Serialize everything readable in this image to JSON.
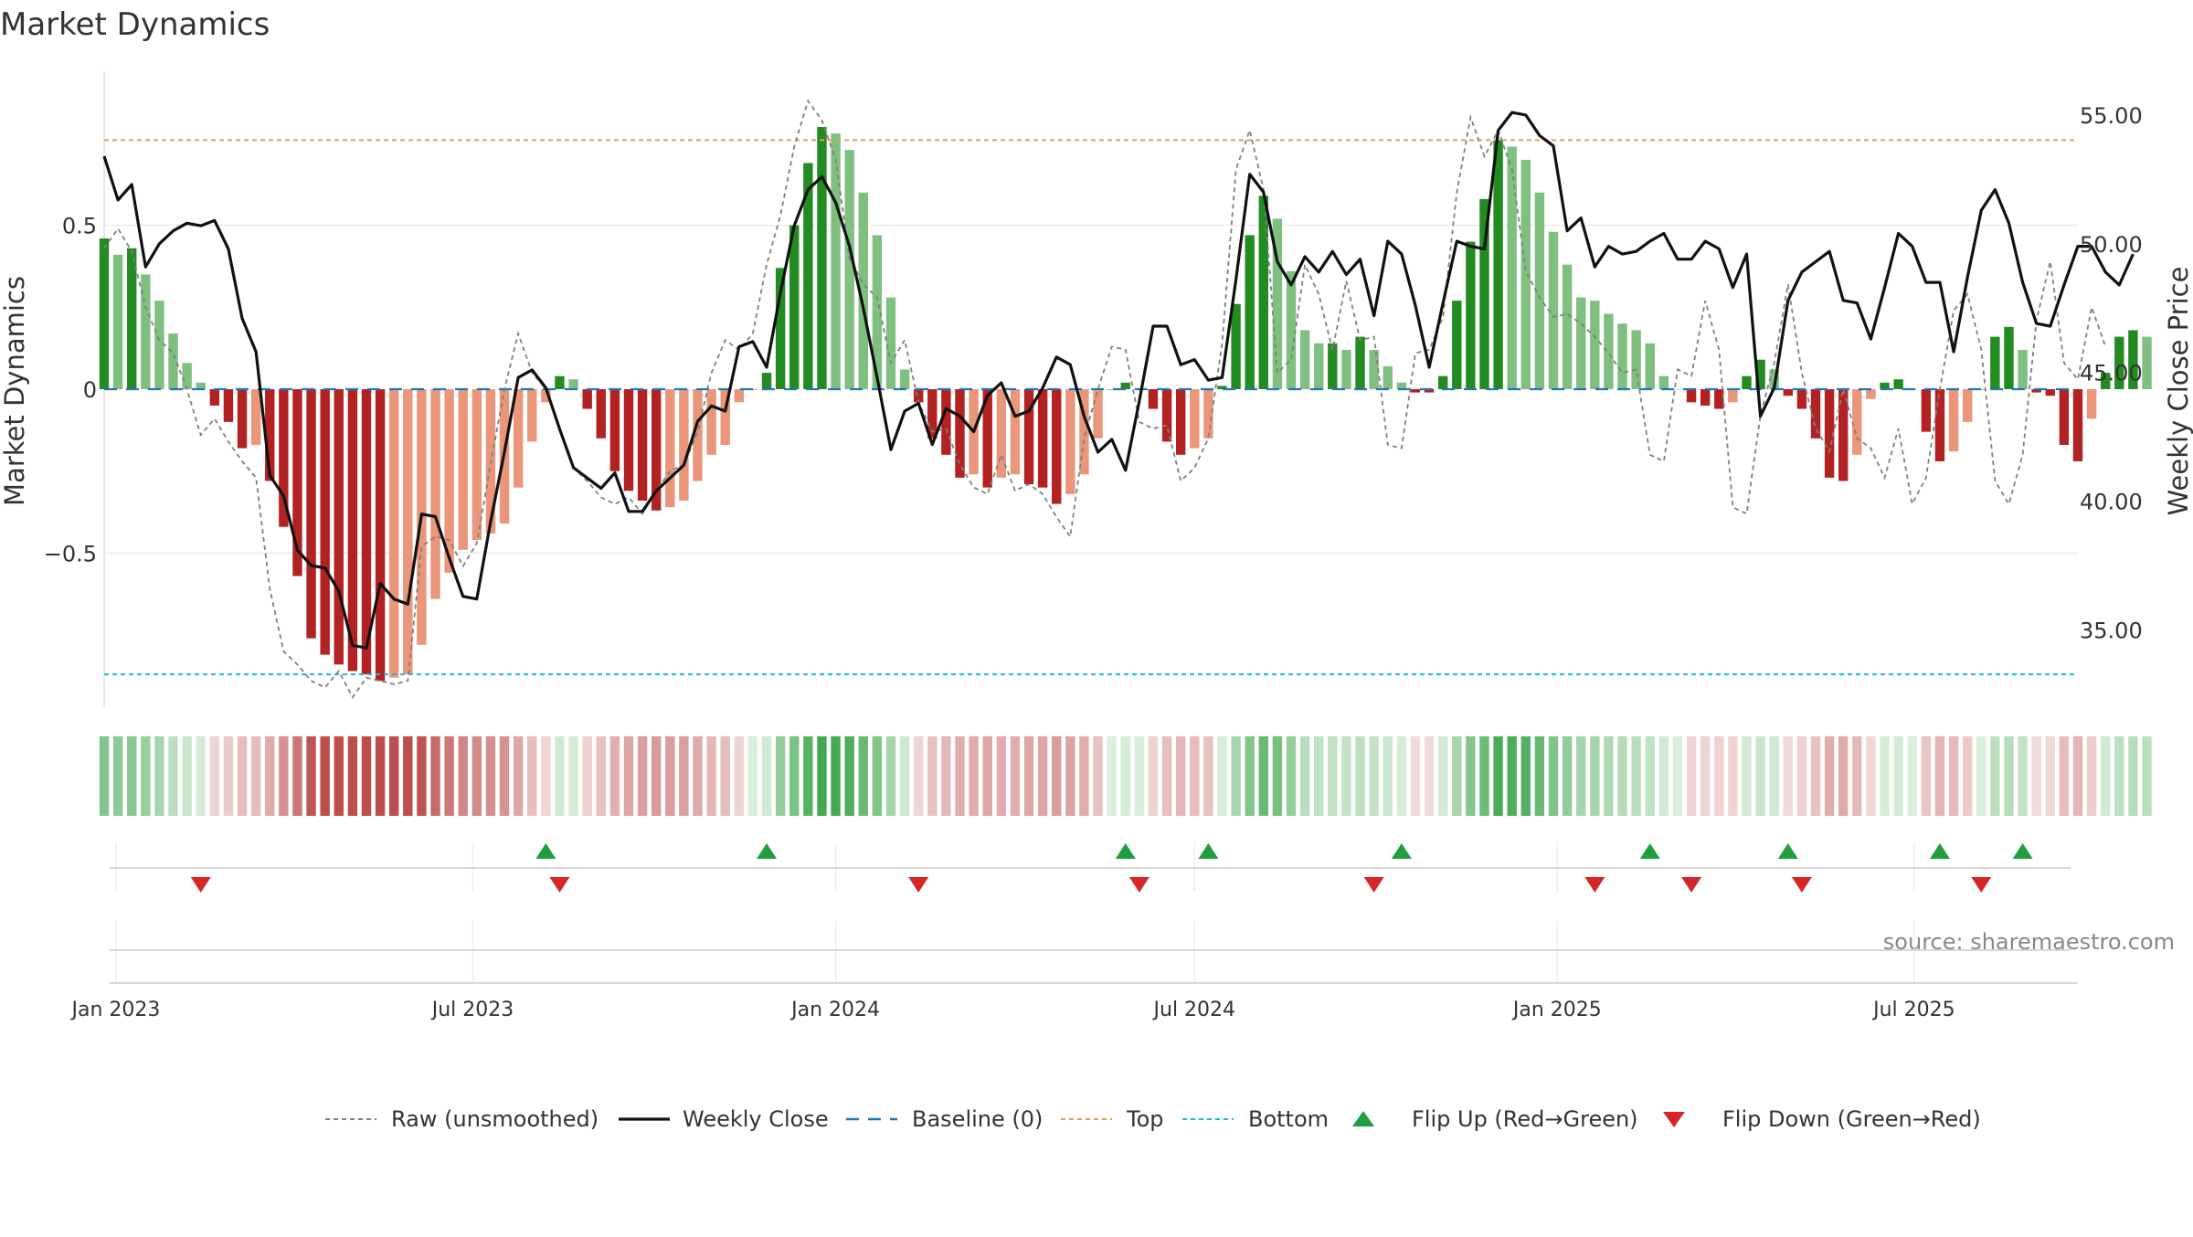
{
  "chart_data": {
    "type": "bar",
    "title": "Market Dynamics",
    "ylabel_left": "Market Dynamics",
    "ylabel_right": "Weekly Close Price",
    "left_axis": {
      "ylim": [
        -0.97,
        0.97
      ],
      "ticks": [
        -0.5,
        0,
        0.5
      ],
      "tick_labels": [
        "−0.5",
        "0",
        "0.5"
      ]
    },
    "right_axis": {
      "ylim": [
        32.0,
        56.7
      ],
      "ticks": [
        35,
        40,
        45,
        50,
        55
      ],
      "tick_labels": [
        "35.00",
        "40.00",
        "45.00",
        "50.00",
        "55.00"
      ]
    },
    "x_axis": {
      "start": "2022-12-26",
      "end": "2025-09-22",
      "tick_dates": [
        "2023-01-01",
        "2023-07-01",
        "2024-01-01",
        "2024-07-01",
        "2025-01-01",
        "2025-07-01"
      ],
      "tick_labels": [
        "Jan 2023",
        "Jul 2023",
        "Jan 2024",
        "Jul 2024",
        "Jan 2025",
        "Jul 2025"
      ]
    },
    "reference_lines": {
      "top": 0.76,
      "bottom": -0.87,
      "baseline": 0
    },
    "colors": {
      "up_strong": "#228B22",
      "up_weak": "#7FBF7F",
      "down_strong": "#B22222",
      "down_weak": "#E9967A",
      "raw": "#808080",
      "close": "#111111",
      "baseline": "#1f77b4",
      "top": "#E0A050",
      "bottom": "#17BECF",
      "flip_up": "#1E9E3E",
      "flip_down": "#D62728"
    },
    "series": [
      {
        "name": "Market Dynamics",
        "values": [
          0.46,
          0.41,
          0.43,
          0.35,
          0.27,
          0.17,
          0.08,
          0.02,
          -0.05,
          -0.1,
          -0.18,
          -0.17,
          -0.28,
          -0.42,
          -0.57,
          -0.76,
          -0.81,
          -0.84,
          -0.86,
          -0.87,
          -0.89,
          -0.88,
          -0.87,
          -0.78,
          -0.64,
          -0.56,
          -0.49,
          -0.46,
          -0.44,
          -0.41,
          -0.3,
          -0.16,
          -0.04,
          0.04,
          0.03,
          -0.06,
          -0.15,
          -0.25,
          -0.31,
          -0.34,
          -0.37,
          -0.36,
          -0.34,
          -0.28,
          -0.2,
          -0.17,
          -0.04,
          0.0,
          0.05,
          0.37,
          0.5,
          0.69,
          0.8,
          0.78,
          0.73,
          0.6,
          0.47,
          0.28,
          0.06,
          -0.04,
          -0.15,
          -0.2,
          -0.27,
          -0.26,
          -0.3,
          -0.27,
          -0.26,
          -0.29,
          -0.3,
          -0.35,
          -0.32,
          -0.26,
          -0.15,
          0.0,
          0.02,
          0.0,
          -0.06,
          -0.16,
          -0.2,
          -0.18,
          -0.15,
          0.01,
          0.26,
          0.47,
          0.59,
          0.52,
          0.36,
          0.18,
          0.14,
          0.14,
          0.12,
          0.16,
          0.12,
          0.07,
          0.02,
          -0.01,
          -0.01,
          0.04,
          0.27,
          0.45,
          0.58,
          0.76,
          0.74,
          0.7,
          0.6,
          0.48,
          0.38,
          0.28,
          0.27,
          0.23,
          0.2,
          0.18,
          0.14,
          0.04,
          0.0,
          -0.04,
          -0.05,
          -0.06,
          -0.04,
          0.04,
          0.09,
          0.06,
          -0.02,
          -0.06,
          -0.15,
          -0.27,
          -0.28,
          -0.2,
          -0.03,
          0.02,
          0.03,
          0.0,
          -0.13,
          -0.22,
          -0.19,
          -0.1,
          0.0,
          0.16,
          0.19,
          0.12,
          -0.01,
          -0.02,
          -0.17,
          -0.22,
          -0.09,
          0.05,
          0.16,
          0.18,
          0.16
        ]
      },
      {
        "name": "Raw (unsmoothed)",
        "values": [
          0.43,
          0.49,
          0.42,
          0.25,
          0.15,
          0.11,
          0.0,
          -0.14,
          -0.09,
          -0.16,
          -0.22,
          -0.27,
          -0.61,
          -0.8,
          -0.84,
          -0.89,
          -0.91,
          -0.86,
          -0.94,
          -0.88,
          -0.89,
          -0.9,
          -0.89,
          -0.48,
          -0.45,
          -0.46,
          -0.54,
          -0.47,
          -0.23,
          0.0,
          0.17,
          0.05,
          0.0,
          -0.12,
          -0.24,
          -0.28,
          -0.33,
          -0.35,
          -0.33,
          -0.38,
          -0.31,
          -0.25,
          -0.23,
          -0.13,
          0.05,
          0.15,
          0.12,
          0.17,
          0.38,
          0.53,
          0.74,
          0.88,
          0.82,
          0.7,
          0.4,
          0.32,
          0.28,
          0.08,
          0.15,
          -0.04,
          -0.13,
          -0.12,
          -0.23,
          -0.3,
          -0.32,
          -0.2,
          -0.31,
          -0.29,
          -0.32,
          -0.39,
          -0.45,
          -0.15,
          0.0,
          0.13,
          0.12,
          -0.1,
          -0.12,
          -0.11,
          -0.28,
          -0.24,
          -0.15,
          0.14,
          0.67,
          0.79,
          0.61,
          0.05,
          0.09,
          0.38,
          0.29,
          0.12,
          0.33,
          0.15,
          0.16,
          -0.17,
          -0.18,
          0.11,
          0.12,
          0.22,
          0.6,
          0.83,
          0.71,
          0.79,
          0.67,
          0.36,
          0.28,
          0.22,
          0.23,
          0.2,
          0.16,
          0.11,
          0.05,
          0.06,
          -0.2,
          -0.22,
          0.06,
          0.04,
          0.27,
          0.12,
          -0.36,
          -0.38,
          -0.08,
          0.08,
          0.32,
          0.05,
          -0.12,
          -0.19,
          0.0,
          -0.15,
          -0.18,
          -0.27,
          -0.12,
          -0.35,
          -0.27,
          0.0,
          0.24,
          0.29,
          0.12,
          -0.28,
          -0.35,
          -0.2,
          0.21,
          0.39,
          0.08,
          0.03,
          0.25,
          0.13
        ]
      },
      {
        "name": "Weekly Close",
        "values": [
          53.4,
          51.7,
          52.3,
          49.1,
          50.0,
          50.5,
          50.8,
          50.7,
          50.9,
          49.8,
          47.1,
          45.8,
          41.0,
          40.2,
          38.1,
          37.5,
          37.4,
          36.5,
          34.4,
          34.3,
          36.8,
          36.2,
          36.0,
          39.5,
          39.4,
          37.8,
          36.3,
          36.2,
          39.2,
          41.9,
          44.8,
          45.1,
          44.4,
          42.8,
          41.3,
          40.9,
          40.5,
          41.1,
          39.6,
          39.6,
          40.4,
          40.9,
          41.4,
          43.1,
          43.7,
          43.5,
          46.0,
          46.2,
          45.2,
          48.1,
          50.7,
          52.1,
          52.6,
          51.6,
          49.9,
          47.5,
          44.8,
          42.0,
          43.5,
          43.8,
          42.2,
          43.6,
          43.3,
          42.7,
          44.1,
          44.6,
          43.3,
          43.5,
          44.4,
          45.6,
          45.3,
          43.3,
          41.9,
          42.4,
          41.2,
          43.9,
          46.8,
          46.8,
          45.3,
          45.5,
          44.7,
          44.8,
          48.6,
          52.7,
          52.0,
          49.3,
          48.4,
          49.5,
          48.9,
          49.7,
          48.8,
          49.4,
          47.2,
          50.1,
          49.6,
          47.6,
          45.2,
          47.7,
          50.1,
          49.9,
          49.8,
          54.4,
          55.1,
          55.0,
          54.2,
          53.8,
          50.5,
          51.0,
          49.1,
          49.9,
          49.6,
          49.7,
          50.1,
          50.4,
          49.4,
          49.4,
          50.1,
          49.8,
          48.3,
          49.6,
          43.3,
          44.4,
          47.8,
          48.9,
          49.3,
          49.7,
          47.8,
          47.7,
          46.3,
          48.3,
          50.4,
          49.9,
          48.5,
          48.5,
          45.8,
          48.7,
          51.3,
          52.1,
          50.8,
          48.5,
          46.9,
          46.8,
          48.4,
          49.9,
          49.9,
          48.9,
          48.4,
          49.6
        ]
      }
    ],
    "flips_up": [
      "2023-08-07",
      "2023-11-27",
      "2024-05-27",
      "2024-07-08",
      "2024-10-14",
      "2025-02-17",
      "2025-04-28",
      "2025-07-14",
      "2025-08-25"
    ],
    "flips_down": [
      "2023-02-13",
      "2023-08-14",
      "2024-02-12",
      "2024-06-03",
      "2024-09-30",
      "2025-01-20",
      "2025-03-10",
      "2025-05-05",
      "2025-08-04"
    ],
    "legend": [
      {
        "label": "Raw (unsmoothed)",
        "icon": "dashed-line-gray"
      },
      {
        "label": "Weekly Close",
        "icon": "solid-line-black"
      },
      {
        "label": "Baseline (0)",
        "icon": "dashed-line-blue"
      },
      {
        "label": "Top",
        "icon": "dotted-line-orange"
      },
      {
        "label": "Bottom",
        "icon": "dotted-line-cyan"
      },
      {
        "label": "Flip Up (Red→Green)",
        "icon": "triangle-up-green"
      },
      {
        "label": "Flip Down (Green→Red)",
        "icon": "triangle-down-red"
      }
    ],
    "legend_position": "bottom",
    "source": "source: sharemaestro.com"
  }
}
